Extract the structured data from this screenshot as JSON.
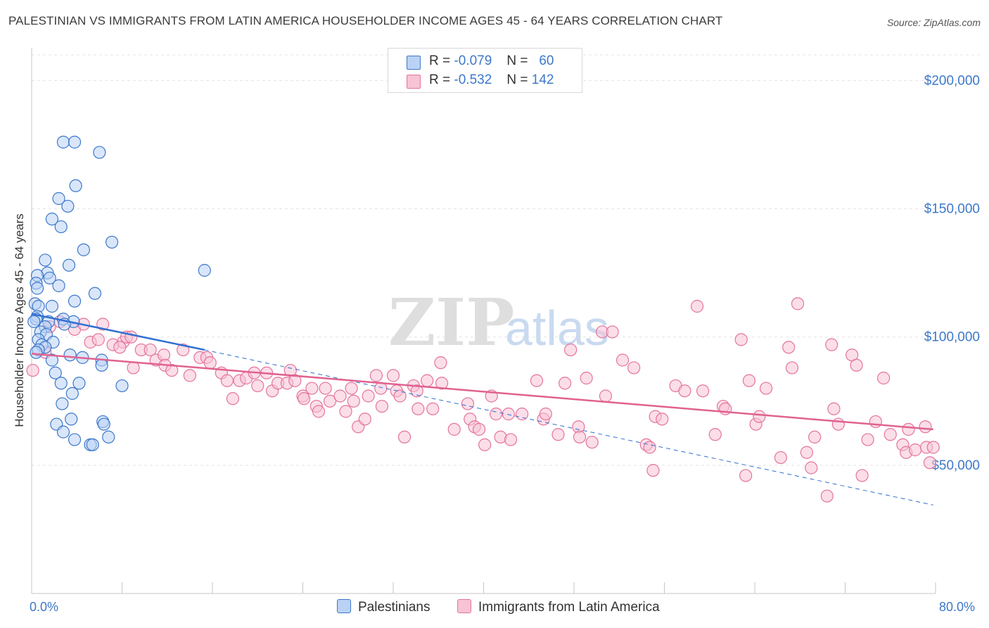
{
  "title": "PALESTINIAN VS IMMIGRANTS FROM LATIN AMERICA HOUSEHOLDER INCOME AGES 45 - 64 YEARS CORRELATION CHART",
  "source": "Source: ZipAtlas.com",
  "watermark": {
    "zip": "ZIP",
    "atlas": "atlas"
  },
  "colors": {
    "blue": "#3d78c9",
    "blue_fill": "#b9d2f5",
    "blue_line": "#2f6fd1",
    "pink": "#e4749d",
    "pink_fill": "#f7c3d5",
    "pink_line": "#e0628f",
    "grid": "#e3e3e3",
    "axis": "#c6c6c6"
  },
  "legend": {
    "series1": {
      "r_label": "R =",
      "r_value": "-0.079",
      "n_label": "N =",
      "n_value": "60"
    },
    "series2": {
      "r_label": "R =",
      "r_value": "-0.532",
      "n_label": "N =",
      "n_value": "142"
    }
  },
  "bottom_legend": {
    "series1": "Palestinians",
    "series2": "Immigrants from Latin America"
  },
  "chart_data": {
    "type": "scatter",
    "title": "PALESTINIAN VS IMMIGRANTS FROM LATIN AMERICA HOUSEHOLDER INCOME AGES 45 - 64 YEARS CORRELATION CHART",
    "xlabel": "",
    "ylabel": "Householder Income Ages 45 - 64 years",
    "xlim": [
      0,
      80
    ],
    "ylim": [
      0,
      210000
    ],
    "x_tick_labels": {
      "left": "0.0%",
      "right": "80.0%"
    },
    "y_ticks": [
      {
        "value": 50000,
        "label": "$50,000"
      },
      {
        "value": 100000,
        "label": "$100,000"
      },
      {
        "value": 150000,
        "label": "$150,000"
      },
      {
        "value": 200000,
        "label": "$200,000"
      }
    ],
    "series": [
      {
        "name": "Palestinians",
        "R": -0.079,
        "N": 60,
        "trend_solid": {
          "x": [
            0.0,
            15.3
          ],
          "y": [
            109000,
            95000
          ]
        },
        "trend_dashed": {
          "x": [
            15.3,
            79.8
          ],
          "y": [
            95000,
            34500
          ]
        },
        "points": [
          [
            2.8,
            176000
          ],
          [
            3.8,
            176000
          ],
          [
            6.0,
            172000
          ],
          [
            3.9,
            159000
          ],
          [
            2.4,
            154000
          ],
          [
            3.2,
            151000
          ],
          [
            1.8,
            146000
          ],
          [
            2.6,
            143000
          ],
          [
            7.1,
            137000
          ],
          [
            4.6,
            134000
          ],
          [
            1.2,
            130000
          ],
          [
            3.3,
            128000
          ],
          [
            15.3,
            126000
          ],
          [
            1.4,
            125000
          ],
          [
            0.5,
            124000
          ],
          [
            1.6,
            123000
          ],
          [
            0.4,
            121000
          ],
          [
            2.4,
            120000
          ],
          [
            0.5,
            119000
          ],
          [
            5.6,
            117000
          ],
          [
            3.8,
            114000
          ],
          [
            0.3,
            113000
          ],
          [
            0.6,
            112000
          ],
          [
            1.8,
            112000
          ],
          [
            0.5,
            108000
          ],
          [
            0.4,
            107000
          ],
          [
            2.8,
            107000
          ],
          [
            3.7,
            106000
          ],
          [
            0.2,
            106000
          ],
          [
            1.5,
            106000
          ],
          [
            1.2,
            104000
          ],
          [
            2.9,
            105000
          ],
          [
            0.8,
            102000
          ],
          [
            1.3,
            101000
          ],
          [
            0.6,
            99000
          ],
          [
            1.9,
            98000
          ],
          [
            0.9,
            97000
          ],
          [
            1.2,
            96000
          ],
          [
            0.6,
            95000
          ],
          [
            0.4,
            94000
          ],
          [
            3.4,
            93000
          ],
          [
            1.8,
            91000
          ],
          [
            4.5,
            92000
          ],
          [
            6.2,
            91000
          ],
          [
            6.2,
            89000
          ],
          [
            2.1,
            86000
          ],
          [
            2.6,
            82000
          ],
          [
            4.2,
            82000
          ],
          [
            8.0,
            81000
          ],
          [
            3.6,
            78000
          ],
          [
            2.7,
            74000
          ],
          [
            3.5,
            68000
          ],
          [
            6.3,
            67000
          ],
          [
            2.2,
            66000
          ],
          [
            6.4,
            66000
          ],
          [
            2.8,
            63000
          ],
          [
            3.8,
            60000
          ],
          [
            6.8,
            61000
          ],
          [
            5.2,
            58000
          ],
          [
            5.4,
            58000
          ]
        ]
      },
      {
        "name": "Immigrants from Latin America",
        "R": -0.532,
        "N": 142,
        "trend_solid": {
          "x": [
            0.0,
            79.8
          ],
          "y": [
            93500,
            64000
          ]
        },
        "points": [
          [
            0.1,
            87000
          ],
          [
            1.2,
            94000
          ],
          [
            1.6,
            104000
          ],
          [
            2.5,
            106000
          ],
          [
            3.8,
            103000
          ],
          [
            4.6,
            105000
          ],
          [
            6.3,
            105000
          ],
          [
            5.2,
            98000
          ],
          [
            5.9,
            99000
          ],
          [
            7.2,
            97000
          ],
          [
            8.1,
            98000
          ],
          [
            7.8,
            96000
          ],
          [
            8.4,
            100000
          ],
          [
            8.8,
            100000
          ],
          [
            9.0,
            88000
          ],
          [
            9.7,
            95000
          ],
          [
            10.5,
            95000
          ],
          [
            11.0,
            91000
          ],
          [
            11.7,
            93000
          ],
          [
            11.8,
            89000
          ],
          [
            12.4,
            87000
          ],
          [
            13.4,
            95000
          ],
          [
            14.0,
            85000
          ],
          [
            14.9,
            92000
          ],
          [
            15.5,
            92000
          ],
          [
            15.8,
            90000
          ],
          [
            16.8,
            86000
          ],
          [
            17.3,
            83000
          ],
          [
            17.8,
            76000
          ],
          [
            18.4,
            83000
          ],
          [
            19.0,
            84000
          ],
          [
            19.7,
            86000
          ],
          [
            20.0,
            81000
          ],
          [
            20.8,
            86000
          ],
          [
            21.3,
            79000
          ],
          [
            21.8,
            82000
          ],
          [
            22.6,
            82000
          ],
          [
            22.9,
            87000
          ],
          [
            23.3,
            83000
          ],
          [
            24.0,
            77000
          ],
          [
            24.1,
            76000
          ],
          [
            24.8,
            80000
          ],
          [
            25.2,
            73000
          ],
          [
            25.4,
            71000
          ],
          [
            26.0,
            80000
          ],
          [
            26.4,
            75000
          ],
          [
            27.3,
            77000
          ],
          [
            27.8,
            71000
          ],
          [
            28.3,
            80000
          ],
          [
            28.5,
            75000
          ],
          [
            28.9,
            65000
          ],
          [
            29.5,
            68000
          ],
          [
            29.8,
            77000
          ],
          [
            30.5,
            85000
          ],
          [
            30.9,
            80000
          ],
          [
            31.0,
            73000
          ],
          [
            32.0,
            85000
          ],
          [
            32.3,
            79000
          ],
          [
            32.6,
            77000
          ],
          [
            33.0,
            61000
          ],
          [
            33.8,
            81000
          ],
          [
            34.1,
            79000
          ],
          [
            34.2,
            72000
          ],
          [
            35.0,
            83000
          ],
          [
            35.5,
            72000
          ],
          [
            36.2,
            90000
          ],
          [
            36.3,
            82000
          ],
          [
            37.4,
            64000
          ],
          [
            38.6,
            74000
          ],
          [
            38.8,
            68000
          ],
          [
            39.2,
            65000
          ],
          [
            39.6,
            64000
          ],
          [
            40.1,
            58000
          ],
          [
            40.7,
            77000
          ],
          [
            41.1,
            70000
          ],
          [
            41.5,
            61000
          ],
          [
            42.2,
            70000
          ],
          [
            42.4,
            60000
          ],
          [
            43.4,
            70000
          ],
          [
            44.7,
            83000
          ],
          [
            45.3,
            68000
          ],
          [
            45.5,
            70000
          ],
          [
            46.6,
            62000
          ],
          [
            47.2,
            82000
          ],
          [
            47.7,
            95000
          ],
          [
            48.4,
            65000
          ],
          [
            48.5,
            61000
          ],
          [
            49.1,
            84000
          ],
          [
            49.6,
            59000
          ],
          [
            50.5,
            102000
          ],
          [
            50.8,
            77000
          ],
          [
            51.4,
            102000
          ],
          [
            52.3,
            91000
          ],
          [
            53.3,
            88000
          ],
          [
            54.4,
            58000
          ],
          [
            54.7,
            57000
          ],
          [
            55.0,
            48000
          ],
          [
            55.2,
            69000
          ],
          [
            55.8,
            68000
          ],
          [
            57.0,
            81000
          ],
          [
            57.8,
            79000
          ],
          [
            58.9,
            112000
          ],
          [
            59.4,
            79000
          ],
          [
            60.5,
            62000
          ],
          [
            61.2,
            73000
          ],
          [
            61.4,
            72000
          ],
          [
            62.8,
            99000
          ],
          [
            63.2,
            46000
          ],
          [
            63.5,
            83000
          ],
          [
            64.1,
            66000
          ],
          [
            64.4,
            69000
          ],
          [
            65.0,
            80000
          ],
          [
            66.3,
            53000
          ],
          [
            67.0,
            96000
          ],
          [
            67.3,
            88000
          ],
          [
            67.8,
            113000
          ],
          [
            68.6,
            55000
          ],
          [
            69.0,
            49000
          ],
          [
            69.3,
            61000
          ],
          [
            70.4,
            38000
          ],
          [
            70.8,
            97000
          ],
          [
            71.0,
            72000
          ],
          [
            71.4,
            66000
          ],
          [
            72.6,
            93000
          ],
          [
            73.0,
            89000
          ],
          [
            73.5,
            46000
          ],
          [
            74.0,
            60000
          ],
          [
            74.7,
            67000
          ],
          [
            75.4,
            84000
          ],
          [
            76.0,
            62000
          ],
          [
            77.1,
            58000
          ],
          [
            77.4,
            55000
          ],
          [
            77.6,
            64000
          ],
          [
            78.2,
            56000
          ],
          [
            79.1,
            65000
          ],
          [
            79.2,
            57000
          ],
          [
            79.5,
            51000
          ],
          [
            79.8,
            57000
          ]
        ]
      }
    ]
  }
}
